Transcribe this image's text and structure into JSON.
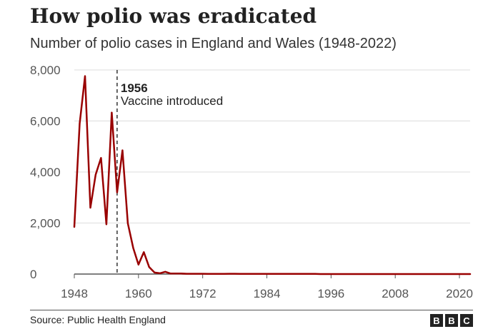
{
  "header": {
    "title": "How polio was eradicated",
    "subtitle": "Number of polio cases in England and Wales (1948-2022)"
  },
  "footer": {
    "source": "Source: Public Health England",
    "logo_letters": [
      "B",
      "B",
      "C"
    ]
  },
  "chart_data": {
    "type": "line",
    "title": "How polio was eradicated",
    "subtitle": "Number of polio cases in England and Wales (1948-2022)",
    "xlabel": "",
    "ylabel": "",
    "xlim": [
      1948,
      2022
    ],
    "ylim": [
      0,
      8000
    ],
    "x_ticks": [
      1948,
      1960,
      1972,
      1984,
      1996,
      2008,
      2020
    ],
    "y_ticks": [
      0,
      2000,
      4000,
      6000,
      8000
    ],
    "y_tick_labels": [
      "0",
      "2,000",
      "4,000",
      "6,000",
      "8,000"
    ],
    "grid": true,
    "line_color": "#990000",
    "annotation": {
      "x": 1956,
      "year_label": "1956",
      "text": "Vaccine introduced"
    },
    "series": [
      {
        "x": [
          1948,
          1949,
          1950,
          1951,
          1952,
          1953,
          1954,
          1955,
          1956,
          1957,
          1958,
          1959,
          1960,
          1961,
          1962,
          1963,
          1964,
          1965,
          1966,
          1967,
          1968,
          1969,
          1970,
          1971,
          1972,
          1973,
          1974,
          1975,
          1976,
          1977,
          1978,
          1979,
          1980,
          1981,
          1982,
          1983,
          1984,
          1985,
          1986,
          1987,
          1988,
          1989,
          1990,
          1991,
          1992,
          1993,
          1994,
          1995,
          1996,
          1997,
          1998,
          1999,
          2000,
          2001,
          2002,
          2003,
          2004,
          2005,
          2006,
          2007,
          2008,
          2009,
          2010,
          2011,
          2012,
          2013,
          2014,
          2015,
          2016,
          2017,
          2018,
          2019,
          2020,
          2021,
          2022
        ],
        "values": [
          1850,
          5900,
          7760,
          2600,
          3900,
          4550,
          1950,
          6330,
          3200,
          4850,
          1990,
          1030,
          370,
          860,
          270,
          60,
          30,
          90,
          20,
          20,
          20,
          10,
          10,
          10,
          10,
          5,
          5,
          5,
          5,
          10,
          10,
          5,
          5,
          5,
          5,
          5,
          5,
          5,
          5,
          5,
          5,
          5,
          5,
          5,
          5,
          5,
          0,
          0,
          0,
          0,
          0,
          0,
          0,
          0,
          0,
          0,
          0,
          0,
          0,
          0,
          0,
          0,
          0,
          0,
          0,
          0,
          0,
          0,
          0,
          0,
          0,
          0,
          0,
          0,
          0
        ]
      }
    ]
  }
}
